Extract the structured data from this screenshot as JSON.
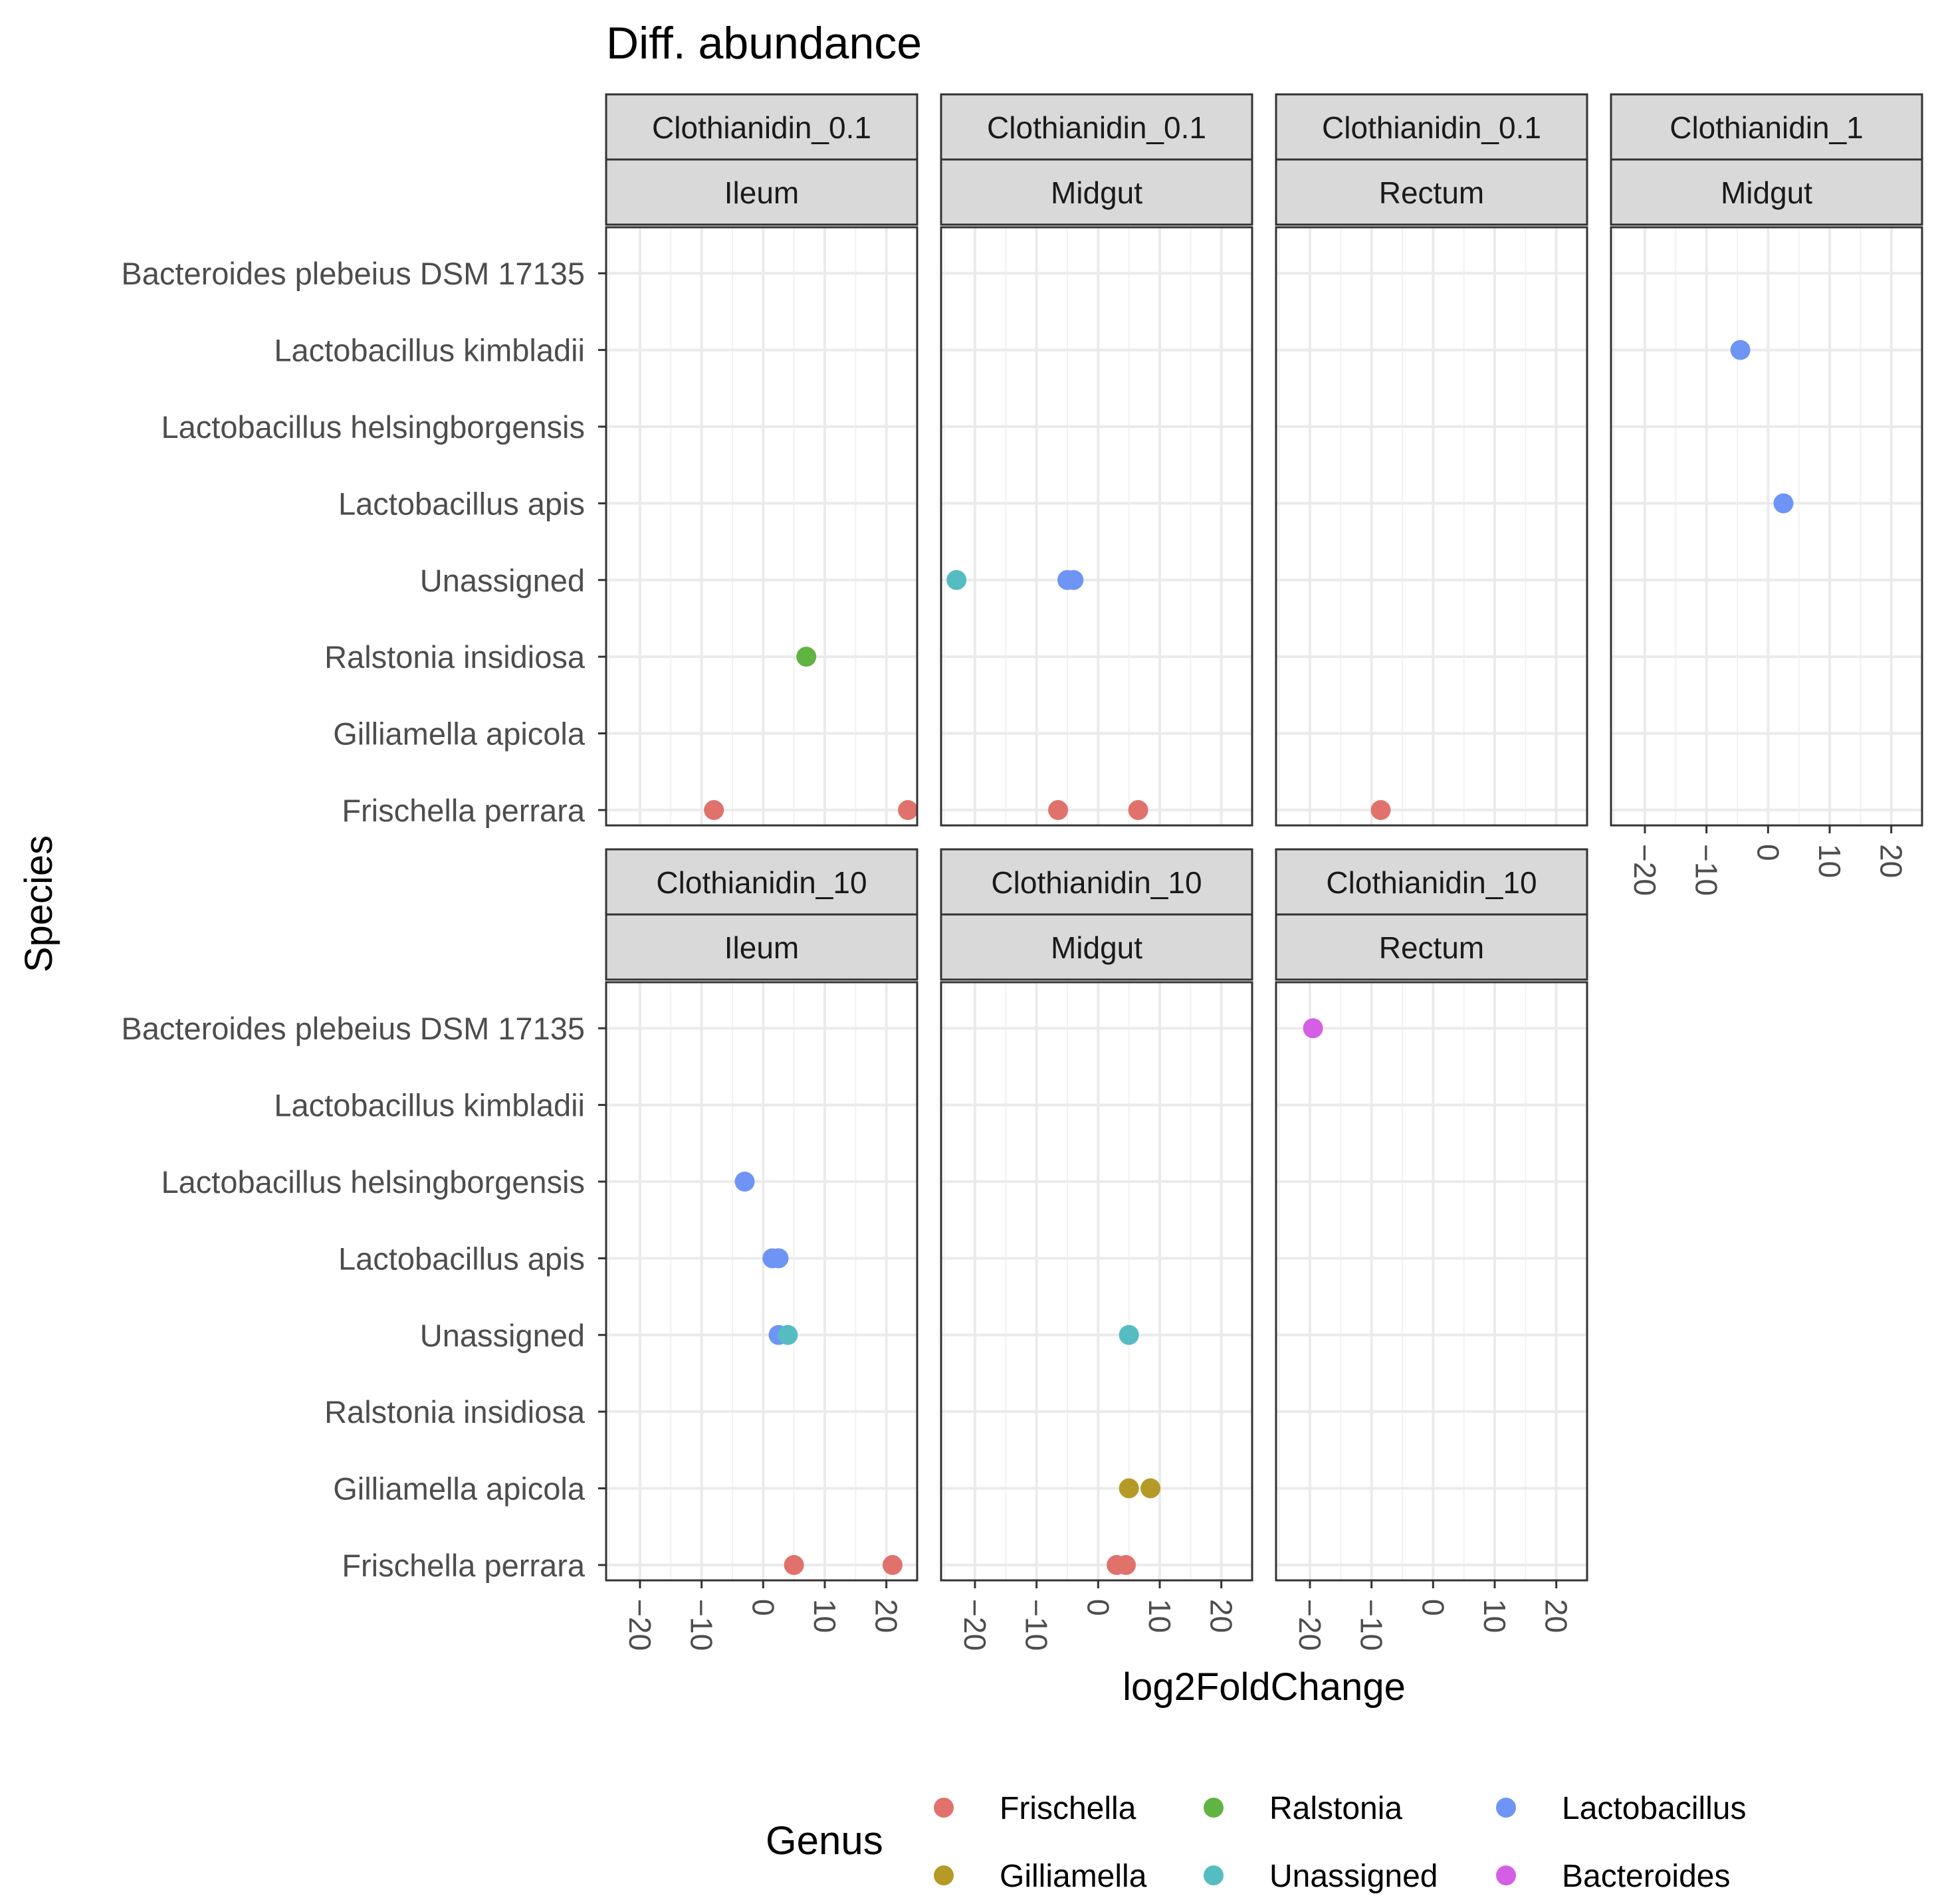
{
  "chart_data": {
    "type": "scatter",
    "title": "Diff. abundance",
    "xlabel": "log2FoldChange",
    "ylabel": "Species",
    "xlim": [
      -25.5,
      25
    ],
    "x_ticks": [
      -20,
      -10,
      0,
      10,
      20
    ],
    "x_tick_labels": [
      "−20",
      "−10",
      "0",
      "10",
      "20"
    ],
    "grid": true,
    "species": [
      "Bacteroides plebeius DSM 17135",
      "Lactobacillus kimbladii",
      "Lactobacillus helsingborgensis",
      "Lactobacillus apis",
      "Unassigned",
      "Ralstonia insidiosa",
      "Gilliamella apicola",
      "Frischella perrara"
    ],
    "legend": {
      "title": "Genus",
      "position": "bottom",
      "entries": [
        {
          "name": "Frischella",
          "color": "#E0716B"
        },
        {
          "name": "Ralstonia",
          "color": "#5FB442"
        },
        {
          "name": "Lactobacillus",
          "color": "#6E94F5"
        },
        {
          "name": "Gilliamella",
          "color": "#B59A27"
        },
        {
          "name": "Unassigned",
          "color": "#55BCC2"
        },
        {
          "name": "Bacteroides",
          "color": "#D55FE4"
        }
      ]
    },
    "panels": [
      {
        "treatment": "Clothianidin_0.1",
        "tissue": "Ileum",
        "points": [
          {
            "species": "Frischella perrara",
            "x": -8,
            "genus": "Frischella"
          },
          {
            "species": "Frischella perrara",
            "x": 23.5,
            "genus": "Frischella"
          },
          {
            "species": "Ralstonia insidiosa",
            "x": 7,
            "genus": "Ralstonia"
          }
        ]
      },
      {
        "treatment": "Clothianidin_0.1",
        "tissue": "Midgut",
        "points": [
          {
            "species": "Unassigned",
            "x": -23,
            "genus": "Unassigned"
          },
          {
            "species": "Unassigned",
            "x": -5,
            "genus": "Lactobacillus"
          },
          {
            "species": "Unassigned",
            "x": -4,
            "genus": "Lactobacillus"
          },
          {
            "species": "Frischella perrara",
            "x": -6.5,
            "genus": "Frischella"
          },
          {
            "species": "Frischella perrara",
            "x": 6.5,
            "genus": "Frischella"
          }
        ]
      },
      {
        "treatment": "Clothianidin_0.1",
        "tissue": "Rectum",
        "points": [
          {
            "species": "Frischella perrara",
            "x": -8.5,
            "genus": "Frischella"
          }
        ]
      },
      {
        "treatment": "Clothianidin_1",
        "tissue": "Midgut",
        "points": [
          {
            "species": "Lactobacillus kimbladii",
            "x": -4.5,
            "genus": "Lactobacillus"
          },
          {
            "species": "Lactobacillus apis",
            "x": 2.5,
            "genus": "Lactobacillus"
          }
        ]
      },
      {
        "treatment": "Clothianidin_10",
        "tissue": "Ileum",
        "points": [
          {
            "species": "Lactobacillus helsingborgensis",
            "x": -3,
            "genus": "Lactobacillus"
          },
          {
            "species": "Lactobacillus apis",
            "x": 1.5,
            "genus": "Lactobacillus"
          },
          {
            "species": "Lactobacillus apis",
            "x": 2.5,
            "genus": "Lactobacillus"
          },
          {
            "species": "Unassigned",
            "x": 2.5,
            "genus": "Lactobacillus"
          },
          {
            "species": "Unassigned",
            "x": 4,
            "genus": "Unassigned"
          },
          {
            "species": "Frischella perrara",
            "x": 5,
            "genus": "Frischella"
          },
          {
            "species": "Frischella perrara",
            "x": 21,
            "genus": "Frischella"
          }
        ]
      },
      {
        "treatment": "Clothianidin_10",
        "tissue": "Midgut",
        "points": [
          {
            "species": "Unassigned",
            "x": 5,
            "genus": "Unassigned"
          },
          {
            "species": "Gilliamella apicola",
            "x": 5,
            "genus": "Gilliamella"
          },
          {
            "species": "Gilliamella apicola",
            "x": 8.5,
            "genus": "Gilliamella"
          },
          {
            "species": "Frischella perrara",
            "x": 3,
            "genus": "Frischella"
          },
          {
            "species": "Frischella perrara",
            "x": 4.5,
            "genus": "Frischella"
          }
        ]
      },
      {
        "treatment": "Clothianidin_10",
        "tissue": "Rectum",
        "points": [
          {
            "species": "Bacteroides plebeius DSM 17135",
            "x": -19.5,
            "genus": "Bacteroides"
          }
        ]
      }
    ]
  }
}
